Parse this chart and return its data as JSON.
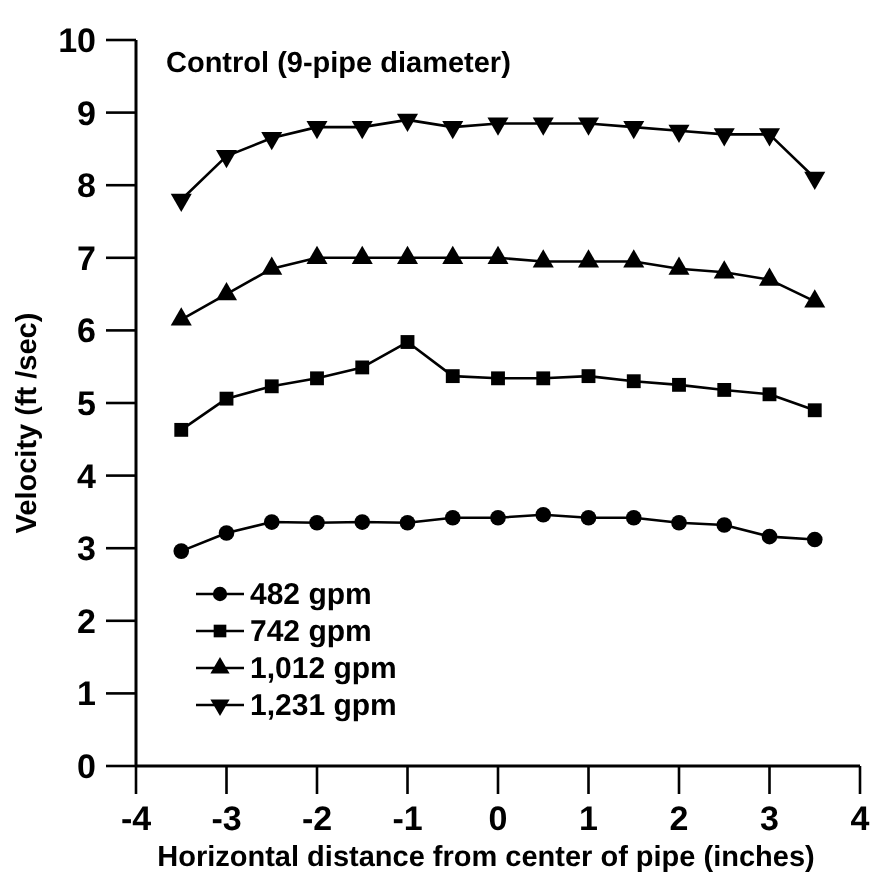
{
  "chart_data": {
    "type": "line",
    "title": "Control (9-pipe diameter)",
    "xlabel": "Horizontal distance from center of pipe (inches)",
    "ylabel": "Velocity (ft /sec)",
    "x": [
      -3.5,
      -3,
      -2.5,
      -2,
      -1.5,
      -1,
      -0.5,
      0,
      0.5,
      1,
      1.5,
      2,
      2.5,
      3,
      3.5
    ],
    "xlim": [
      -4,
      4
    ],
    "xticks": [
      -4,
      -3,
      -2,
      -1,
      0,
      1,
      2,
      3,
      4
    ],
    "ylim": [
      0,
      10
    ],
    "yticks": [
      0,
      1,
      2,
      3,
      4,
      5,
      6,
      7,
      8,
      9,
      10
    ],
    "grid": false,
    "legend": "bottom left",
    "line_style": "solid",
    "series": [
      {
        "name": "482 gpm",
        "color": "#000000",
        "marker": "circle",
        "values": [
          2.96,
          3.21,
          3.36,
          3.35,
          3.36,
          3.35,
          3.42,
          3.42,
          3.46,
          3.42,
          3.42,
          3.35,
          3.32,
          3.16,
          3.12
        ]
      },
      {
        "name": "742 gpm",
        "color": "#000000",
        "marker": "square",
        "values": [
          4.63,
          5.06,
          5.23,
          5.34,
          5.49,
          5.84,
          5.37,
          5.34,
          5.34,
          5.37,
          5.3,
          5.25,
          5.18,
          5.12,
          4.9
        ]
      },
      {
        "name": "1,012 gpm",
        "color": "#000000",
        "marker": "triangle",
        "values": [
          6.15,
          6.5,
          6.85,
          7.0,
          7.0,
          7.0,
          7.0,
          7.0,
          6.95,
          6.95,
          6.95,
          6.85,
          6.8,
          6.7,
          6.4
        ]
      },
      {
        "name": "1,231 gpm",
        "color": "#000000",
        "marker": "triangle-down",
        "values": [
          7.8,
          8.4,
          8.65,
          8.8,
          8.8,
          8.9,
          8.8,
          8.85,
          8.85,
          8.85,
          8.8,
          8.75,
          8.7,
          8.7,
          8.1
        ]
      }
    ]
  }
}
